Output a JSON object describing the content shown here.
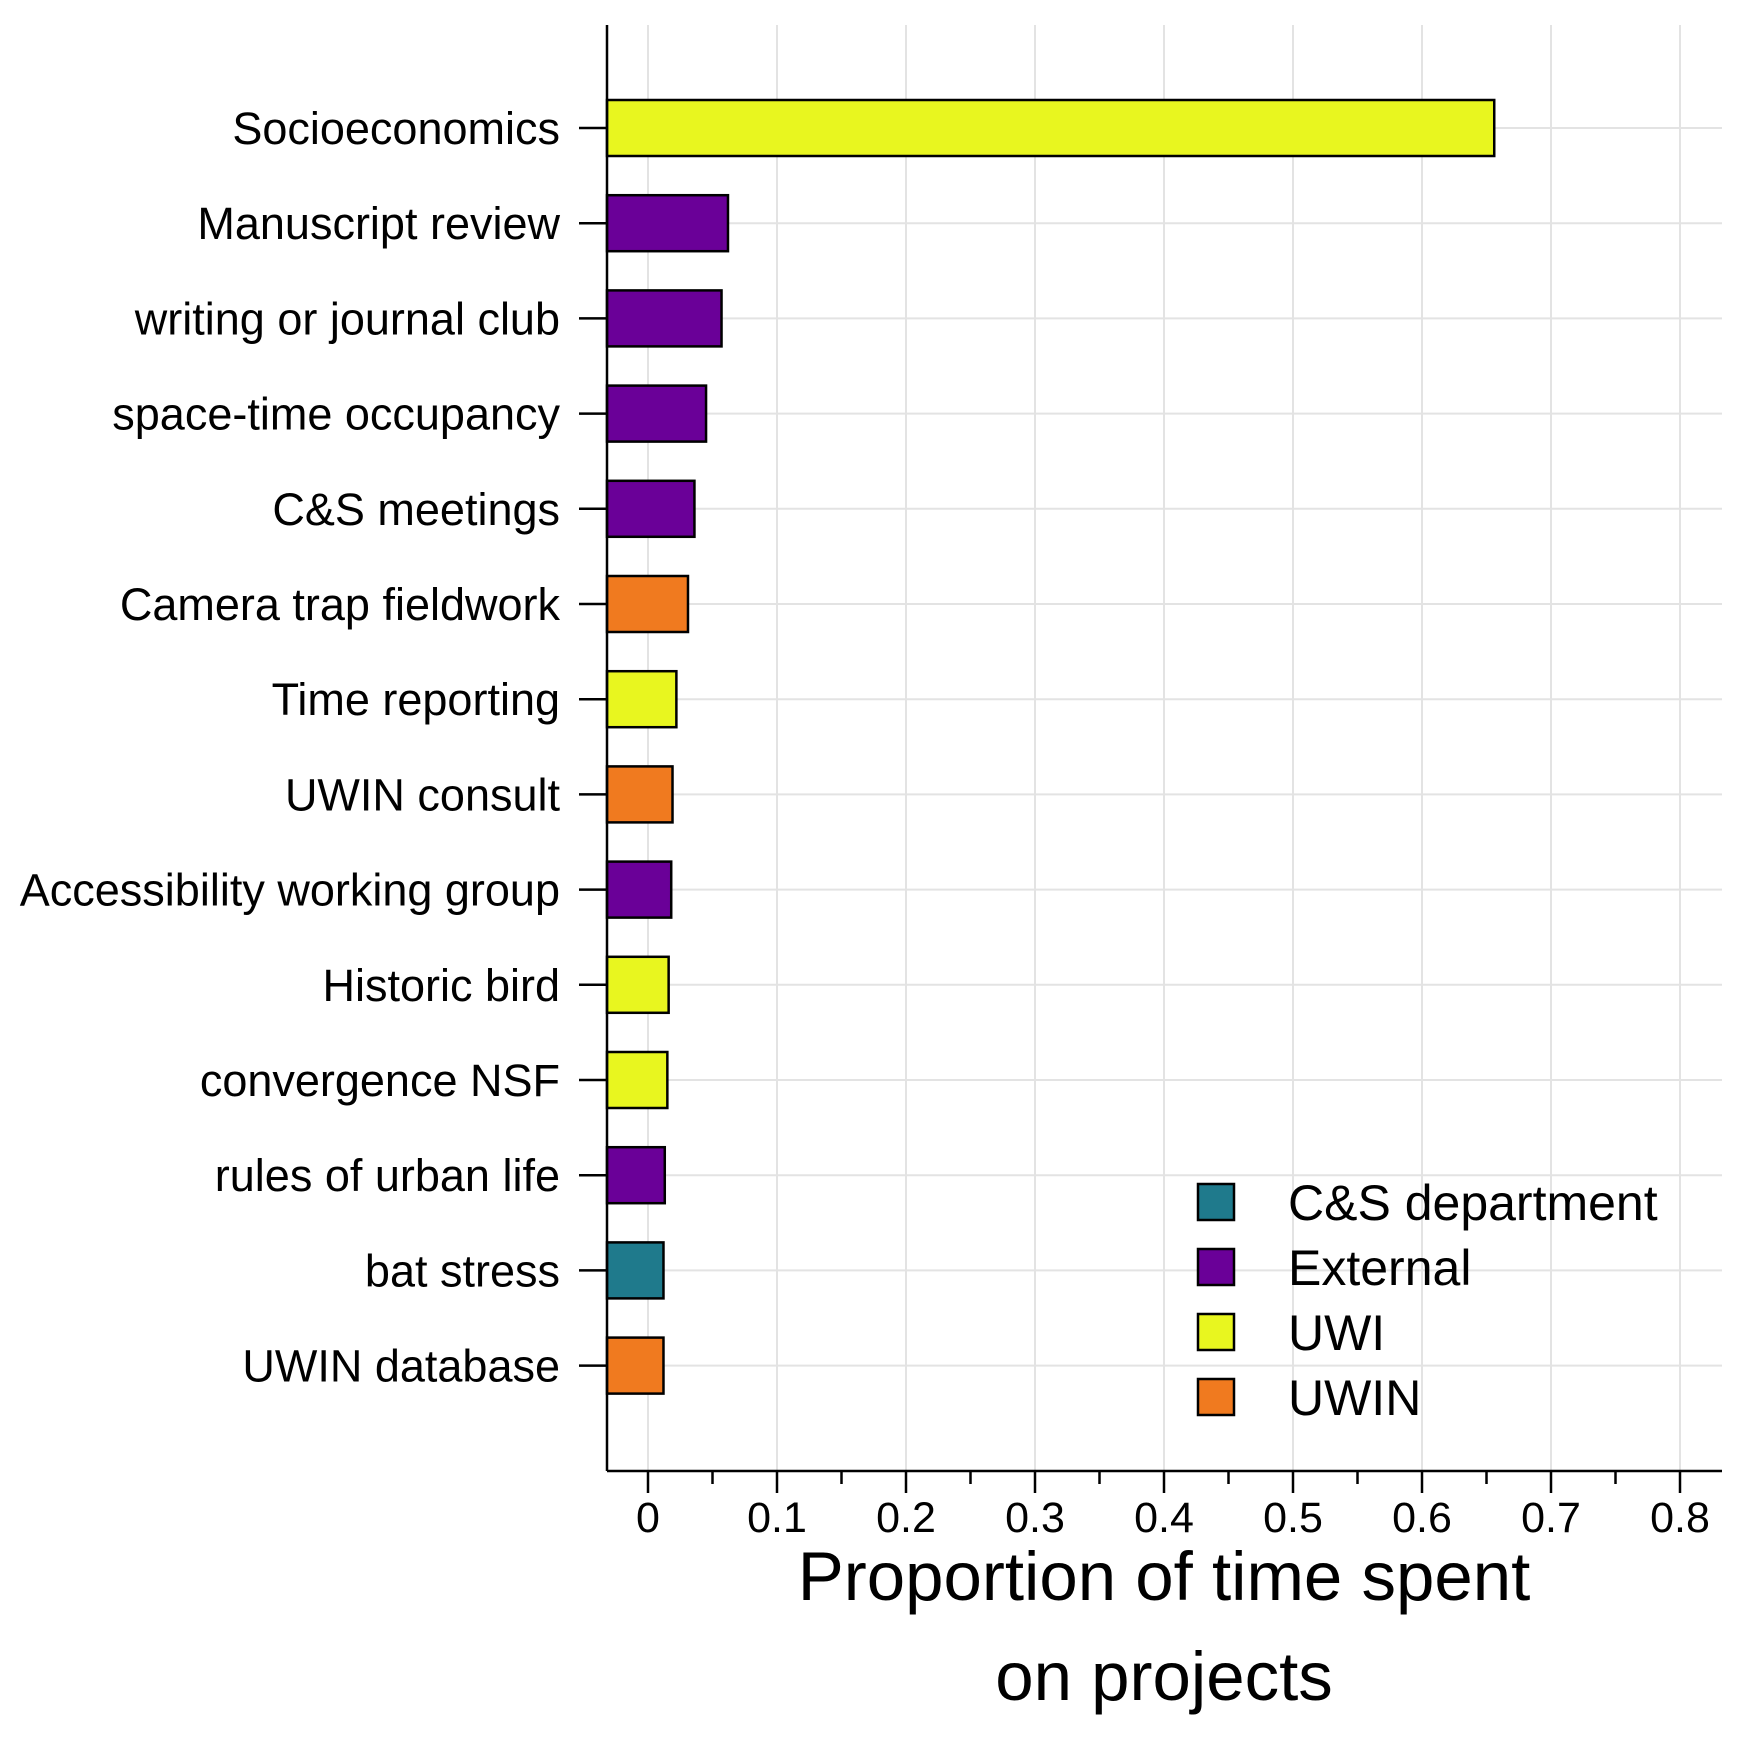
{
  "chart_data": {
    "type": "bar",
    "orientation": "horizontal",
    "categories": [
      "Socioeconomics",
      "Manuscript review",
      "writing or journal club",
      "space-time occupancy",
      "C&S meetings",
      "Camera trap fieldwork",
      "Time reporting",
      "UWIN consult",
      "Accessibility working group",
      "Historic bird",
      "convergence NSF",
      "rules of urban life",
      "bat stress",
      "UWIN database"
    ],
    "values": [
      0.656,
      0.062,
      0.057,
      0.045,
      0.036,
      0.031,
      0.022,
      0.019,
      0.018,
      0.016,
      0.015,
      0.013,
      0.012,
      0.012
    ],
    "groups": [
      "UWI",
      "External",
      "External",
      "External",
      "External",
      "UWIN",
      "UWI",
      "UWIN",
      "External",
      "UWI",
      "UWI",
      "External",
      "C&S department",
      "UWIN"
    ],
    "legend": [
      {
        "name": "C&S department",
        "color": "#1f7a8c"
      },
      {
        "name": "External",
        "color": "#6a0098"
      },
      {
        "name": "UWI",
        "color": "#e8f61f"
      },
      {
        "name": "UWIN",
        "color": "#f07a1f"
      }
    ],
    "legend_position": "bottom-right",
    "xticks": [
      "0",
      "0.1",
      "0.2",
      "0.3",
      "0.4",
      "0.5",
      "0.6",
      "0.7",
      "0.8"
    ],
    "xlim": [
      -0.032,
      0.832
    ],
    "xlabel": [
      "Proportion of time spent",
      "on projects"
    ],
    "ylabel": "",
    "grid": true
  }
}
